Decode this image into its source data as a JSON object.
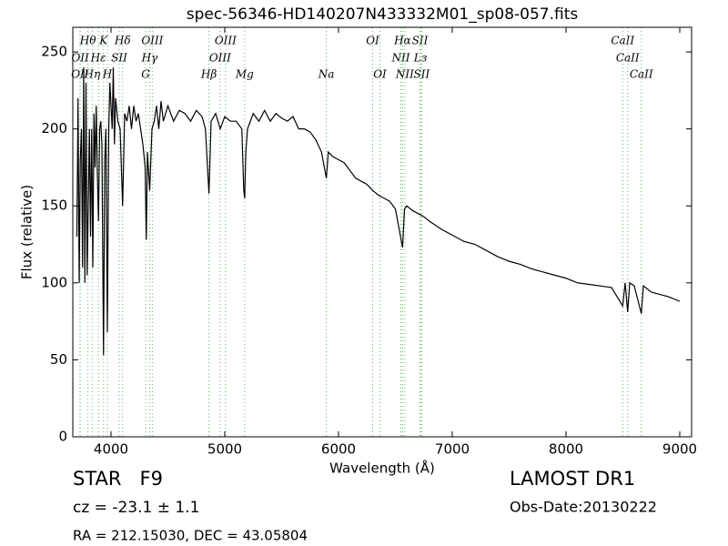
{
  "chart_data": {
    "type": "line",
    "title": "spec-56346-HD140207N433332M01_sp08-057.fits",
    "x_label": "Wavelength (Å)",
    "y_label": "Flux (relative)",
    "color": "#000000",
    "line_color": "#5cb85c",
    "xlim": [
      3664,
      9104
    ],
    "ylim": [
      0,
      266
    ],
    "xticks": [
      4000,
      5000,
      6000,
      7000,
      8000,
      9000
    ],
    "yticks": [
      0,
      50,
      100,
      150,
      200,
      250
    ],
    "x": [
      3700,
      3710,
      3720,
      3730,
      3740,
      3750,
      3760,
      3770,
      3780,
      3790,
      3800,
      3810,
      3820,
      3830,
      3840,
      3850,
      3860,
      3870,
      3880,
      3890,
      3900,
      3910,
      3920,
      3934,
      3945,
      3955,
      3968,
      3980,
      3990,
      4000,
      4010,
      4020,
      4030,
      4040,
      4060,
      4080,
      4102,
      4120,
      4140,
      4160,
      4180,
      4200,
      4220,
      4240,
      4260,
      4280,
      4300,
      4310,
      4320,
      4340,
      4360,
      4380,
      4400,
      4420,
      4440,
      4460,
      4480,
      4500,
      4550,
      4600,
      4650,
      4700,
      4750,
      4800,
      4830,
      4861,
      4880,
      4920,
      4960,
      5000,
      5050,
      5100,
      5150,
      5167,
      5175,
      5185,
      5200,
      5250,
      5300,
      5350,
      5400,
      5450,
      5500,
      5550,
      5600,
      5650,
      5700,
      5750,
      5800,
      5850,
      5893,
      5910,
      5950,
      6000,
      6050,
      6100,
      6150,
      6200,
      6250,
      6300,
      6350,
      6400,
      6450,
      6500,
      6563,
      6580,
      6600,
      6650,
      6700,
      6750,
      6800,
      6900,
      7000,
      7100,
      7200,
      7300,
      7400,
      7500,
      7600,
      7700,
      7800,
      7900,
      8000,
      8100,
      8200,
      8300,
      8400,
      8498,
      8520,
      8542,
      8560,
      8600,
      8662,
      8680,
      8750,
      8800,
      8900,
      9000
    ],
    "values": [
      130,
      220,
      100,
      180,
      200,
      110,
      240,
      100,
      230,
      105,
      150,
      200,
      130,
      200,
      110,
      210,
      175,
      215,
      170,
      140,
      200,
      205,
      190,
      53,
      180,
      200,
      68,
      200,
      230,
      215,
      200,
      240,
      190,
      220,
      205,
      200,
      150,
      210,
      205,
      215,
      200,
      215,
      205,
      210,
      200,
      190,
      175,
      128,
      185,
      160,
      200,
      205,
      215,
      200,
      218,
      205,
      210,
      215,
      205,
      212,
      210,
      205,
      212,
      208,
      200,
      158,
      205,
      210,
      200,
      208,
      205,
      205,
      200,
      160,
      155,
      185,
      200,
      210,
      205,
      212,
      205,
      210,
      207,
      205,
      208,
      200,
      200,
      198,
      193,
      185,
      168,
      185,
      182,
      180,
      178,
      173,
      168,
      166,
      164,
      160,
      157,
      155,
      153,
      148,
      123,
      148,
      150,
      147,
      145,
      143,
      140,
      135,
      131,
      127,
      125,
      121,
      117,
      114,
      112,
      109,
      107,
      105,
      103,
      100,
      99,
      98,
      97,
      85,
      100,
      81,
      100,
      98,
      80,
      98,
      94,
      93,
      91,
      88
    ],
    "lines": [
      {
        "label": "OII",
        "wavelength": 3727
      },
      {
        "label": "OII",
        "wavelength": 3729
      },
      {
        "label": "Hθ",
        "wavelength": 3797
      },
      {
        "label": "Hη",
        "wavelength": 3835
      },
      {
        "label": "Hε",
        "wavelength": 3889
      },
      {
        "label": "K",
        "wavelength": 3934
      },
      {
        "label": "H",
        "wavelength": 3968
      },
      {
        "label": "SII",
        "wavelength": 4072
      },
      {
        "label": "Hδ",
        "wavelength": 4102
      },
      {
        "label": "G",
        "wavelength": 4304
      },
      {
        "label": "Hγ",
        "wavelength": 4340
      },
      {
        "label": "OIII",
        "wavelength": 4363
      },
      {
        "label": "Hβ",
        "wavelength": 4861
      },
      {
        "label": "OIII",
        "wavelength": 4959
      },
      {
        "label": "OIII",
        "wavelength": 5007
      },
      {
        "label": "Mg",
        "wavelength": 5175
      },
      {
        "label": "Na",
        "wavelength": 5893
      },
      {
        "label": "OI",
        "wavelength": 6300
      },
      {
        "label": "OI",
        "wavelength": 6364
      },
      {
        "label": "NII",
        "wavelength": 6548
      },
      {
        "label": "Hα",
        "wavelength": 6563
      },
      {
        "label": "NII",
        "wavelength": 6583
      },
      {
        "label": "SII",
        "wavelength": 6716
      },
      {
        "label": "Lз",
        "wavelength": 6720
      },
      {
        "label": "SII",
        "wavelength": 6731
      },
      {
        "label": "CaII",
        "wavelength": 8498
      },
      {
        "label": "CaII",
        "wavelength": 8542
      },
      {
        "label": "CaII",
        "wavelength": 8662
      }
    ],
    "annotations": [
      "STAR   F9",
      "cz = -23.1 ± 1.1",
      "RA = 212.15030, DEC = 43.05804",
      "LAMOST DR1",
      "Obs-Date:20130222"
    ]
  }
}
